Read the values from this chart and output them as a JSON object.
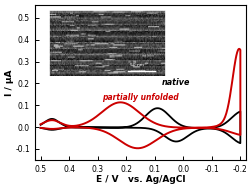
{
  "xlabel": "E / V   vs. Ag/AgCl",
  "ylabel": "I / μA",
  "xlim": [
    0.52,
    -0.22
  ],
  "ylim": [
    -0.15,
    0.56
  ],
  "xticks": [
    0.5,
    0.4,
    0.3,
    0.2,
    0.1,
    0.0,
    -0.1,
    -0.2
  ],
  "yticks": [
    -0.1,
    0.0,
    0.1,
    0.2,
    0.3,
    0.4,
    0.5
  ],
  "native_color": "#000000",
  "unfolded_color": "#cc0000",
  "native_label": "native",
  "unfolded_label": "partially unfolded",
  "background_color": "#ffffff"
}
